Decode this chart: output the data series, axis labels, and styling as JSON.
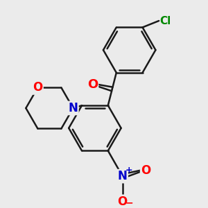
{
  "background_color": "#EBEBEB",
  "bond_color": "#1a1a1a",
  "line_width": 1.8,
  "atom_colors": {
    "O_carbonyl": "#FF0000",
    "O_morpholine": "#FF0000",
    "N": "#0000CC",
    "Cl": "#008800",
    "N_nitro": "#0000CC",
    "O_nitro": "#FF0000"
  },
  "font_size": 11,
  "fig_width": 3.0,
  "fig_height": 3.0,
  "xlim": [
    -1.2,
    3.5
  ],
  "ylim": [
    -2.2,
    3.2
  ]
}
